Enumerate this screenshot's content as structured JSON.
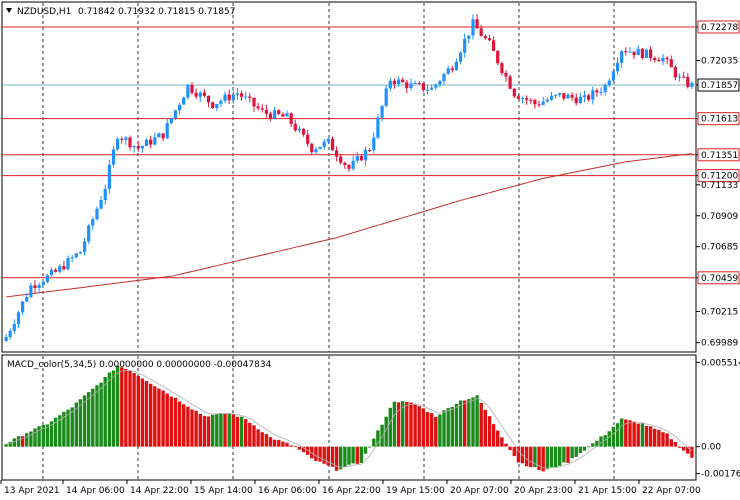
{
  "header": {
    "symbol_tf": "NZDUSD,H1",
    "ohlc": "0.71842 0.71932 0.71815 0.71857"
  },
  "macd_header": "MACD_color(5,34,5) 0.00000000 0.00000000 -0.00047834",
  "colors": {
    "bull": "#1e90ff",
    "bear": "#dc143c",
    "level_line": "#e02020",
    "ma_line": "#c0302c",
    "grid": "#000000",
    "price_tag_bg": "#ffffff",
    "current_price_line": "#7fb0c0",
    "macd_up": "#1a8a1a",
    "macd_down": "#e01010",
    "signal": "#b0b0b0"
  },
  "chart_data": {
    "type": "candlestick",
    "symbol": "NZDUSD",
    "timeframe": "H1",
    "price_axis": {
      "ylim": [
        0.6995,
        0.7243
      ],
      "ticks": [
        "0.72278",
        "0.72035",
        "0.71857",
        "0.71613",
        "0.71351",
        "0.71200",
        "0.71133",
        "0.70909",
        "0.70685",
        "0.70459",
        "0.70215",
        "0.69989"
      ]
    },
    "levels": [
      0.72278,
      0.71613,
      0.71351,
      0.712,
      0.70459
    ],
    "current_price": 0.71857,
    "x_labels": [
      "13 Apr 2021",
      "14 Apr 06:00",
      "14 Apr 22:00",
      "15 Apr 14:00",
      "16 Apr 06:00",
      "16 Apr 22:00",
      "19 Apr 15:00",
      "20 Apr 07:00",
      "20 Apr 23:00",
      "21 Apr 15:00",
      "22 Apr 07:00"
    ],
    "price_anchors": [
      [
        0,
        0.7003
      ],
      [
        6,
        0.704
      ],
      [
        12,
        0.705
      ],
      [
        18,
        0.7065
      ],
      [
        24,
        0.7112
      ],
      [
        27,
        0.715
      ],
      [
        32,
        0.714
      ],
      [
        38,
        0.715
      ],
      [
        44,
        0.7185
      ],
      [
        50,
        0.7172
      ],
      [
        56,
        0.718
      ],
      [
        62,
        0.7166
      ],
      [
        68,
        0.7162
      ],
      [
        74,
        0.714
      ],
      [
        78,
        0.7144
      ],
      [
        83,
        0.7125
      ],
      [
        88,
        0.714
      ],
      [
        93,
        0.719
      ],
      [
        98,
        0.7185
      ],
      [
        103,
        0.7183
      ],
      [
        108,
        0.72
      ],
      [
        113,
        0.723
      ],
      [
        117,
        0.7215
      ],
      [
        123,
        0.718
      ],
      [
        128,
        0.7172
      ],
      [
        134,
        0.7178
      ],
      [
        140,
        0.7175
      ],
      [
        145,
        0.7185
      ],
      [
        149,
        0.7212
      ],
      [
        155,
        0.7208
      ],
      [
        159,
        0.7205
      ],
      [
        163,
        0.719
      ],
      [
        166,
        0.7185
      ]
    ],
    "ma_anchors": [
      [
        0,
        0.7032
      ],
      [
        40,
        0.7047
      ],
      [
        80,
        0.7075
      ],
      [
        110,
        0.7102
      ],
      [
        130,
        0.7118
      ],
      [
        150,
        0.713
      ],
      [
        166,
        0.7136
      ]
    ],
    "macd_axis": {
      "ylim": [
        -0.00205,
        0.0058
      ],
      "ticks": [
        "0.0055143",
        "0.00",
        "-0.001766"
      ]
    },
    "macd_anchors": [
      [
        0,
        0.0002
      ],
      [
        5,
        0.0009
      ],
      [
        10,
        0.0015
      ],
      [
        16,
        0.0026
      ],
      [
        22,
        0.004
      ],
      [
        27,
        0.0053
      ],
      [
        30,
        0.005
      ],
      [
        36,
        0.004
      ],
      [
        42,
        0.003
      ],
      [
        48,
        0.002
      ],
      [
        54,
        0.0022
      ],
      [
        58,
        0.0018
      ],
      [
        64,
        0.0006
      ],
      [
        70,
        0.0
      ],
      [
        74,
        -0.0008
      ],
      [
        80,
        -0.0015
      ],
      [
        86,
        -0.001
      ],
      [
        90,
        0.001
      ],
      [
        94,
        0.003
      ],
      [
        99,
        0.0028
      ],
      [
        104,
        0.002
      ],
      [
        110,
        0.003
      ],
      [
        114,
        0.0033
      ],
      [
        118,
        0.0015
      ],
      [
        124,
        -0.001
      ],
      [
        130,
        -0.0016
      ],
      [
        136,
        -0.001
      ],
      [
        140,
        -0.0002
      ],
      [
        145,
        0.0008
      ],
      [
        149,
        0.0018
      ],
      [
        154,
        0.0015
      ],
      [
        160,
        0.0008
      ],
      [
        163,
        0.0
      ],
      [
        166,
        -0.0007
      ]
    ],
    "n_candles": 167
  }
}
